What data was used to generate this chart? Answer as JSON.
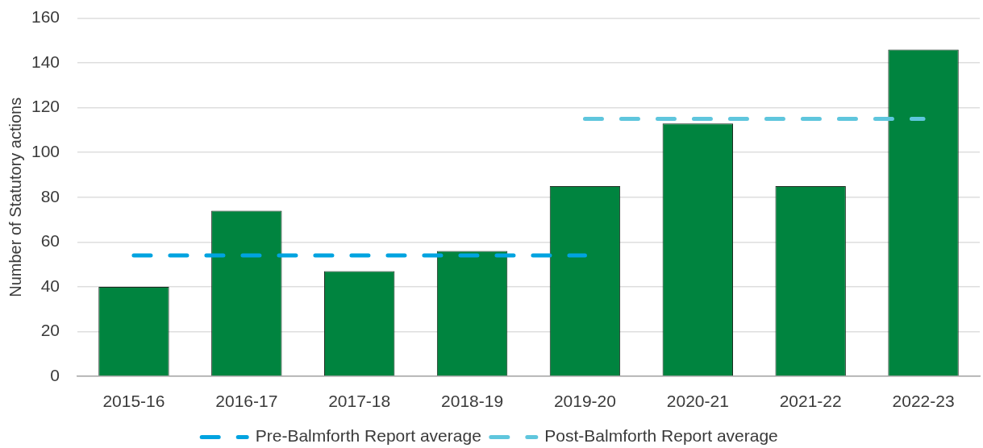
{
  "chart_data": {
    "type": "bar",
    "ylabel": "Number of Statutory actions",
    "categories": [
      "2015-16",
      "2016-17",
      "2017-18",
      "2018-19",
      "2019-20",
      "2020-21",
      "2021-22",
      "2022-23"
    ],
    "series": [
      {
        "color": "#00843f",
        "values": [
          40,
          74,
          47,
          56,
          85,
          113,
          85,
          146
        ]
      },
      {
        "type": "line",
        "name": "Pre-Balmforth Report average",
        "color": "#00a3e0",
        "values": [
          54,
          54,
          54,
          54,
          54,
          null,
          null,
          null
        ]
      },
      {
        "type": "line",
        "name": "Post-Balmforth Report average",
        "color": "#5fc6dd",
        "values": [
          null,
          null,
          null,
          null,
          115,
          115,
          115,
          115
        ]
      }
    ],
    "ylim": [
      0,
      160
    ],
    "yticks": [
      0,
      20,
      40,
      60,
      80,
      100,
      120,
      140,
      160
    ],
    "grid": "y",
    "legend": "bottom",
    "marker": "none",
    "line_style": "dashed"
  }
}
